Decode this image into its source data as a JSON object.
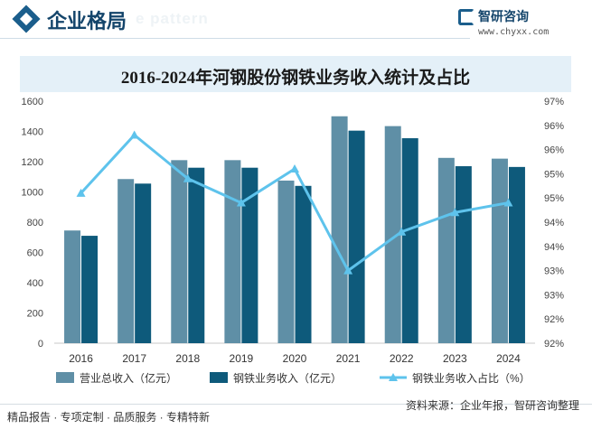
{
  "header": {
    "title": "企业格局",
    "ghost_text": "e pattern",
    "brand_name": "智研咨询",
    "brand_url": "www.chyxx.com"
  },
  "footer": {
    "left": "精品报告 · 专项定制 · 品质服务 · 专精特新",
    "source": "资料来源：企业年报，智研咨询整理"
  },
  "colors": {
    "revenue_bar": "#5f8fa6",
    "steel_bar": "#0e5a7b",
    "ratio_line": "#5ec3ec"
  },
  "chart_data": {
    "type": "bar",
    "title": "2016-2024年河钢股份钢铁业务收入统计及占比",
    "categories": [
      "2016",
      "2017",
      "2018",
      "2019",
      "2020",
      "2021",
      "2022",
      "2023",
      "2024"
    ],
    "series": [
      {
        "name": "营业总收入（亿元）",
        "type": "bar",
        "axis": "left",
        "values": [
          745,
          1085,
          1210,
          1210,
          1075,
          1500,
          1435,
          1225,
          1220
        ]
      },
      {
        "name": "钢铁业务收入（亿元）",
        "type": "bar",
        "axis": "left",
        "values": [
          710,
          1055,
          1160,
          1160,
          1040,
          1405,
          1355,
          1170,
          1165
        ]
      },
      {
        "name": "钢铁业务收入占比（%）",
        "type": "line",
        "axis": "right",
        "values": [
          95.1,
          96.3,
          95.4,
          94.9,
          95.6,
          93.5,
          94.3,
          94.7,
          94.9
        ]
      }
    ],
    "y_left": {
      "min": 0,
      "max": 1600,
      "ticks": [
        "0",
        "200",
        "400",
        "600",
        "800",
        "1000",
        "1200",
        "1400",
        "1600"
      ]
    },
    "y_right": {
      "min": 92.0,
      "max": 97.0,
      "ticks": [
        "92%",
        "92%",
        "93%",
        "93%",
        "94%",
        "94%",
        "95%",
        "95%",
        "96%",
        "96%",
        "97%"
      ]
    },
    "legend_position": "bottom",
    "grid": false
  }
}
